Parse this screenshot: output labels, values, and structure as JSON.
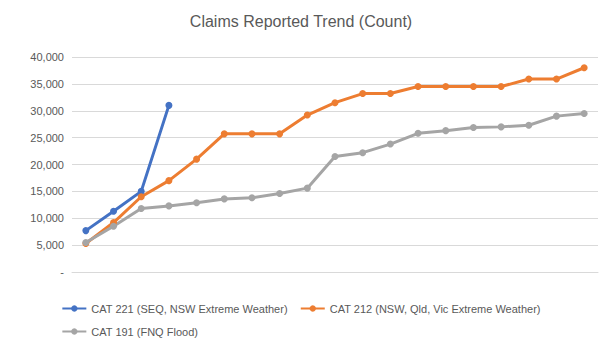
{
  "chart_data": {
    "type": "line",
    "title": "Claims Reported Trend (Count)",
    "categories": [
      null,
      null,
      null,
      null,
      null,
      null,
      null,
      null,
      null,
      null,
      null,
      null,
      null,
      null,
      null,
      null,
      null,
      null,
      null
    ],
    "series": [
      {
        "name": "CAT 221 (SEQ, NSW Extreme Weather)",
        "color": "#4472c4",
        "values": [
          7700,
          11300,
          15000,
          31000,
          null,
          null,
          null,
          null,
          null,
          null,
          null,
          null,
          null,
          null,
          null,
          null,
          null,
          null,
          null
        ]
      },
      {
        "name": "CAT 212 (NSW, Qld, Vic Extreme Weather)",
        "color": "#ed7d31",
        "values": [
          5300,
          9200,
          14000,
          17000,
          21000,
          25700,
          25700,
          25700,
          29200,
          31500,
          33200,
          33200,
          34500,
          34500,
          34500,
          34500,
          35900,
          35900,
          38000
        ]
      },
      {
        "name": "CAT 191 (FNQ Flood)",
        "color": "#a5a5a5",
        "values": [
          5500,
          8500,
          11800,
          12300,
          12900,
          13600,
          13800,
          14600,
          15600,
          21500,
          22200,
          23800,
          25800,
          26300,
          26900,
          27000,
          27300,
          29000,
          29500
        ]
      }
    ],
    "ylim": [
      0,
      40000
    ],
    "yticks": [
      {
        "value": 0,
        "label": "-"
      },
      {
        "value": 5000,
        "label": "5,000"
      },
      {
        "value": 10000,
        "label": "10,000"
      },
      {
        "value": 15000,
        "label": "15,000"
      },
      {
        "value": 20000,
        "label": "20,000"
      },
      {
        "value": 25000,
        "label": "25,000"
      },
      {
        "value": 30000,
        "label": "30,000"
      },
      {
        "value": 35000,
        "label": "35,000"
      },
      {
        "value": 40000,
        "label": "40,000"
      }
    ],
    "grid": true,
    "legend": "bottom",
    "marker": "circle",
    "tick_labels": "y"
  }
}
